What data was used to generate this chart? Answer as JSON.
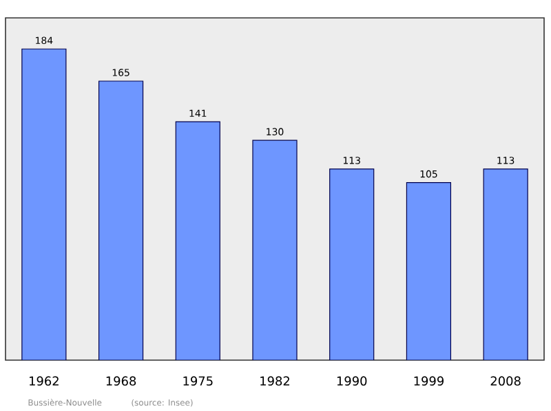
{
  "chart_data": {
    "type": "bar",
    "categories": [
      "1962",
      "1968",
      "1975",
      "1982",
      "1990",
      "1999",
      "2008"
    ],
    "values": [
      184,
      165,
      141,
      130,
      113,
      105,
      113
    ],
    "color": "#6e96ff",
    "data_labels": true,
    "annotations": [
      "Bussière-Nouvelle",
      "(source: Insee)"
    ]
  }
}
